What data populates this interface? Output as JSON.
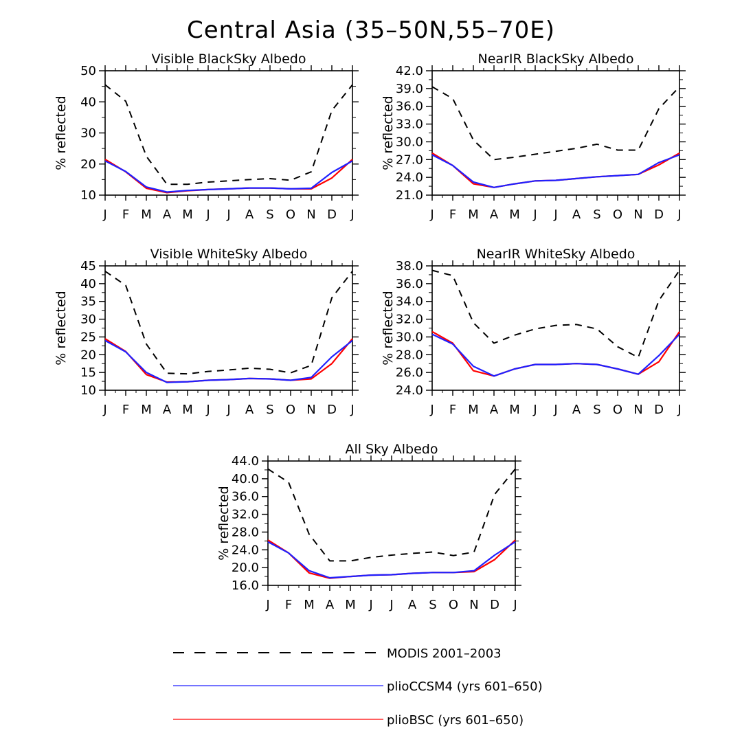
{
  "figure_title": "Central Asia (35–50N,55–70E)",
  "colors": {
    "modis": "#000000",
    "pliocssm4": "#2020ff",
    "pliobsc": "#ff0000"
  },
  "chart_data": [
    {
      "type": "line",
      "title": "Visible BlackSky Albedo",
      "ylabel": "% reflected",
      "x": [
        "J",
        "F",
        "M",
        "A",
        "M",
        "J",
        "J",
        "A",
        "S",
        "O",
        "N",
        "D",
        "J"
      ],
      "ylim": [
        10,
        50
      ],
      "yticks": [
        "10",
        "20",
        "30",
        "40",
        "50"
      ],
      "series": [
        {
          "name": "MODIS 2001–2003",
          "style": "dashed",
          "values": [
            45.5,
            40.2,
            22.5,
            13.5,
            13.5,
            14.2,
            14.6,
            15.0,
            15.3,
            14.8,
            17.5,
            37.2,
            45.5
          ]
        },
        {
          "name": "plioCCSM4 (yrs 601–650)",
          "style": "solid",
          "values": [
            21.0,
            17.6,
            12.6,
            11.0,
            11.5,
            11.8,
            12.0,
            12.3,
            12.3,
            12.0,
            12.2,
            17.3,
            21.0
          ]
        },
        {
          "name": "plioBSC (yrs 601–650)",
          "style": "solid",
          "values": [
            21.5,
            17.5,
            12.2,
            10.8,
            11.4,
            11.8,
            12.0,
            12.3,
            12.3,
            12.0,
            12.0,
            15.5,
            21.5
          ]
        }
      ]
    },
    {
      "type": "line",
      "title": "NearIR BlackSky Albedo",
      "ylabel": "% reflected",
      "x": [
        "J",
        "F",
        "M",
        "A",
        "M",
        "J",
        "J",
        "A",
        "S",
        "O",
        "N",
        "D",
        "J"
      ],
      "ylim": [
        21,
        42
      ],
      "yticks": [
        "21.0",
        "24.0",
        "27.0",
        "30.0",
        "33.0",
        "36.0",
        "39.0",
        "42.0"
      ],
      "series": [
        {
          "name": "MODIS 2001–2003",
          "style": "dashed",
          "values": [
            39.3,
            37.3,
            30.3,
            27.0,
            27.4,
            27.9,
            28.4,
            28.9,
            29.6,
            28.6,
            28.6,
            35.6,
            39.3
          ]
        },
        {
          "name": "plioCCSM4 (yrs 601–650)",
          "style": "solid",
          "values": [
            27.8,
            26.0,
            23.2,
            22.3,
            22.9,
            23.4,
            23.5,
            23.8,
            24.1,
            24.3,
            24.5,
            26.5,
            27.8
          ]
        },
        {
          "name": "plioBSC (yrs 601–650)",
          "style": "solid",
          "values": [
            28.1,
            26.0,
            22.9,
            22.3,
            22.9,
            23.4,
            23.5,
            23.8,
            24.1,
            24.3,
            24.5,
            26.1,
            28.1
          ]
        }
      ]
    },
    {
      "type": "line",
      "title": "Visible WhiteSky Albedo",
      "ylabel": "% reflected",
      "x": [
        "J",
        "F",
        "M",
        "A",
        "M",
        "J",
        "J",
        "A",
        "S",
        "O",
        "N",
        "D",
        "J"
      ],
      "ylim": [
        10,
        45
      ],
      "yticks": [
        "10",
        "15",
        "20",
        "25",
        "30",
        "35",
        "40",
        "45"
      ],
      "series": [
        {
          "name": "MODIS 2001–2003",
          "style": "dashed",
          "values": [
            43.5,
            39.5,
            23.0,
            14.8,
            14.6,
            15.3,
            15.7,
            16.2,
            15.9,
            14.9,
            17.0,
            36.0,
            43.5
          ]
        },
        {
          "name": "plioCCSM4 (yrs 601–650)",
          "style": "solid",
          "values": [
            24.0,
            20.8,
            15.0,
            12.2,
            12.4,
            12.8,
            13.0,
            13.3,
            13.2,
            12.8,
            13.6,
            19.4,
            24.0
          ]
        },
        {
          "name": "plioBSC (yrs 601–650)",
          "style": "solid",
          "values": [
            24.5,
            20.9,
            14.4,
            12.3,
            12.4,
            12.8,
            13.0,
            13.3,
            13.2,
            12.8,
            13.2,
            17.5,
            24.5
          ]
        }
      ]
    },
    {
      "type": "line",
      "title": "NearIR WhiteSky Albedo",
      "ylabel": "% reflected",
      "x": [
        "J",
        "F",
        "M",
        "A",
        "M",
        "J",
        "J",
        "A",
        "S",
        "O",
        "N",
        "D",
        "J"
      ],
      "ylim": [
        24,
        38
      ],
      "yticks": [
        "24.0",
        "26.0",
        "28.0",
        "30.0",
        "32.0",
        "34.0",
        "36.0",
        "38.0"
      ],
      "series": [
        {
          "name": "MODIS 2001–2003",
          "style": "dashed",
          "values": [
            37.5,
            36.9,
            31.6,
            29.3,
            30.2,
            30.9,
            31.3,
            31.4,
            30.9,
            28.9,
            27.7,
            34.1,
            37.5
          ]
        },
        {
          "name": "plioCCSM4 (yrs 601–650)",
          "style": "solid",
          "values": [
            30.3,
            29.2,
            26.7,
            25.6,
            26.4,
            26.9,
            26.9,
            27.0,
            26.9,
            26.4,
            25.8,
            27.9,
            30.3
          ]
        },
        {
          "name": "plioBSC (yrs 601–650)",
          "style": "solid",
          "values": [
            30.6,
            29.3,
            26.2,
            25.6,
            26.4,
            26.9,
            26.9,
            27.0,
            26.9,
            26.4,
            25.8,
            27.2,
            30.6
          ]
        }
      ]
    },
    {
      "type": "line",
      "title": "All Sky Albedo",
      "ylabel": "% reflected",
      "x": [
        "J",
        "F",
        "M",
        "A",
        "M",
        "J",
        "J",
        "A",
        "S",
        "O",
        "N",
        "D",
        "J"
      ],
      "ylim": [
        16,
        44
      ],
      "yticks": [
        "16.0",
        "20.0",
        "24.0",
        "28.0",
        "32.0",
        "36.0",
        "40.0",
        "44.0"
      ],
      "series": [
        {
          "name": "MODIS 2001–2003",
          "style": "dashed",
          "values": [
            42.2,
            39.2,
            27.5,
            21.5,
            21.5,
            22.3,
            22.8,
            23.2,
            23.5,
            22.7,
            23.5,
            36.5,
            42.2
          ]
        },
        {
          "name": "plioCCSM4 (yrs 601–650)",
          "style": "solid",
          "values": [
            25.8,
            23.3,
            19.3,
            17.7,
            18.0,
            18.3,
            18.4,
            18.7,
            18.9,
            18.9,
            19.3,
            22.8,
            25.8
          ]
        },
        {
          "name": "plioBSC (yrs 601–650)",
          "style": "solid",
          "values": [
            26.2,
            23.3,
            18.8,
            17.6,
            18.0,
            18.3,
            18.4,
            18.7,
            18.9,
            18.9,
            19.1,
            21.8,
            26.2
          ]
        }
      ]
    }
  ],
  "legend": [
    {
      "label": "MODIS 2001–2003",
      "style": "dashed",
      "color_key": "modis"
    },
    {
      "label": "plioCCSM4 (yrs 601–650)",
      "style": "solid",
      "color_key": "pliocssm4"
    },
    {
      "label": "plioBSC (yrs 601–650)",
      "style": "solid",
      "color_key": "pliobsc"
    }
  ]
}
